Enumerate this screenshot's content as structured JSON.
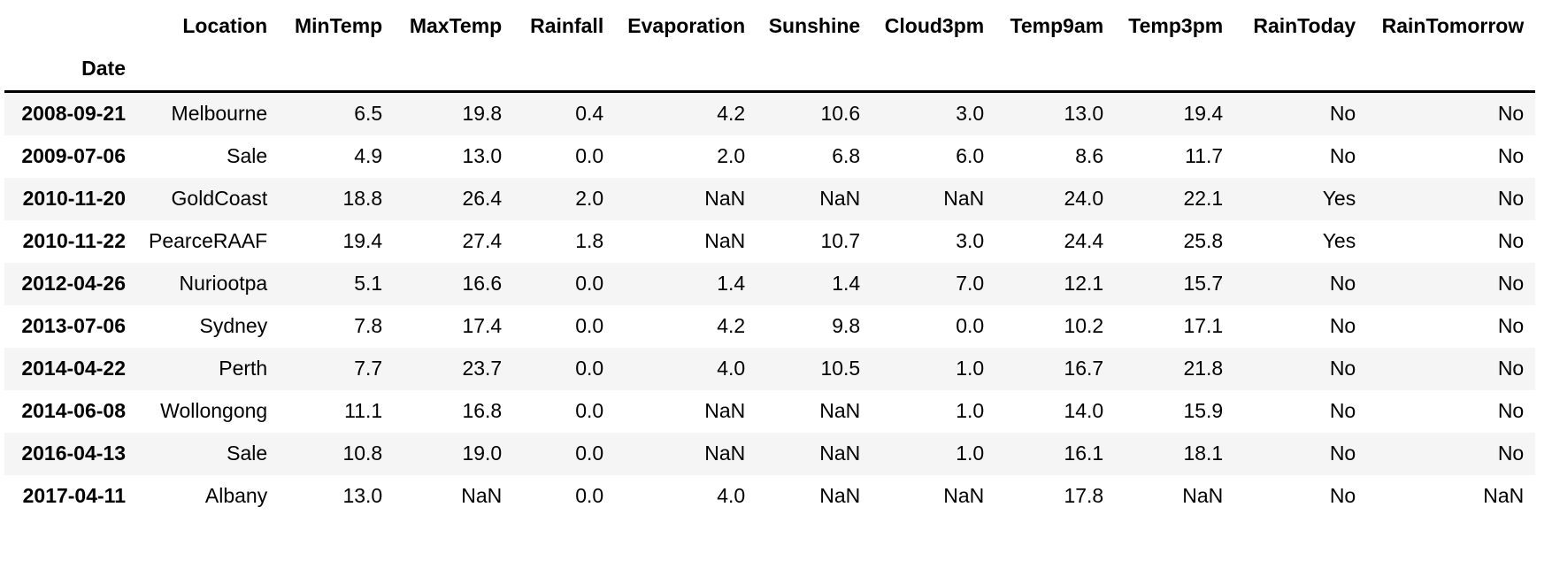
{
  "chart_data": {
    "type": "table",
    "title": "",
    "index_name": "Date",
    "columns": [
      "Location",
      "MinTemp",
      "MaxTemp",
      "Rainfall",
      "Evaporation",
      "Sunshine",
      "Cloud3pm",
      "Temp9am",
      "Temp3pm",
      "RainToday",
      "RainTomorrow"
    ],
    "index": [
      "2008-09-21",
      "2009-07-06",
      "2010-11-20",
      "2010-11-22",
      "2012-04-26",
      "2013-07-06",
      "2014-04-22",
      "2014-06-08",
      "2016-04-13",
      "2017-04-11"
    ],
    "rows": [
      [
        "Melbourne",
        "6.5",
        "19.8",
        "0.4",
        "4.2",
        "10.6",
        "3.0",
        "13.0",
        "19.4",
        "No",
        "No"
      ],
      [
        "Sale",
        "4.9",
        "13.0",
        "0.0",
        "2.0",
        "6.8",
        "6.0",
        "8.6",
        "11.7",
        "No",
        "No"
      ],
      [
        "GoldCoast",
        "18.8",
        "26.4",
        "2.0",
        "NaN",
        "NaN",
        "NaN",
        "24.0",
        "22.1",
        "Yes",
        "No"
      ],
      [
        "PearceRAAF",
        "19.4",
        "27.4",
        "1.8",
        "NaN",
        "10.7",
        "3.0",
        "24.4",
        "25.8",
        "Yes",
        "No"
      ],
      [
        "Nuriootpa",
        "5.1",
        "16.6",
        "0.0",
        "1.4",
        "1.4",
        "7.0",
        "12.1",
        "15.7",
        "No",
        "No"
      ],
      [
        "Sydney",
        "7.8",
        "17.4",
        "0.0",
        "4.2",
        "9.8",
        "0.0",
        "10.2",
        "17.1",
        "No",
        "No"
      ],
      [
        "Perth",
        "7.7",
        "23.7",
        "0.0",
        "4.0",
        "10.5",
        "1.0",
        "16.7",
        "21.8",
        "No",
        "No"
      ],
      [
        "Wollongong",
        "11.1",
        "16.8",
        "0.0",
        "NaN",
        "NaN",
        "1.0",
        "14.0",
        "15.9",
        "No",
        "No"
      ],
      [
        "Sale",
        "10.8",
        "19.0",
        "0.0",
        "NaN",
        "NaN",
        "1.0",
        "16.1",
        "18.1",
        "No",
        "No"
      ],
      [
        "Albany",
        "13.0",
        "NaN",
        "0.0",
        "4.0",
        "NaN",
        "NaN",
        "17.8",
        "NaN",
        "No",
        "NaN"
      ]
    ]
  },
  "style": {
    "stripe_color": "#f5f5f5",
    "header_border_color": "#000000",
    "text_color": "#000000",
    "background_color": "#ffffff"
  }
}
